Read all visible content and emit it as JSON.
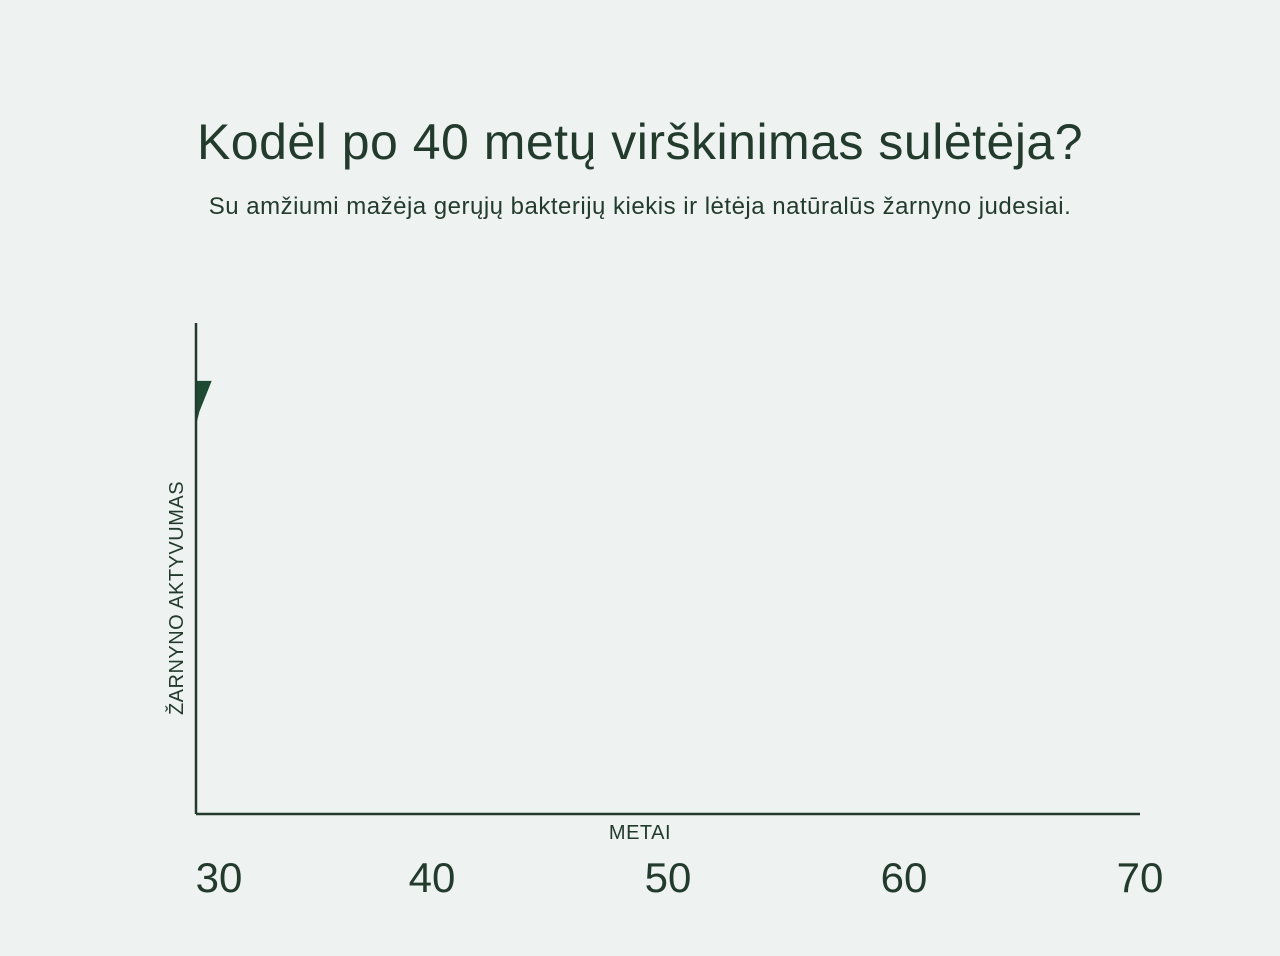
{
  "title": "Kodėl po 40 metų virškinimas sulėtėja?",
  "subtitle": "Su amžiumi mažėja gerųjų bakterijų kiekis ir lėtėja natūralūs žarnyno judesiai.",
  "chart_data": {
    "type": "area",
    "title": "Kodėl po 40 metų virškinimas sulėtėja?",
    "subtitle": "Su amžiumi mažėja gerųjų bakterijų kiekis ir lėtėja natūralūs žarnyno judesiai.",
    "xlabel": "METAI",
    "ylabel": "ŽARNYNO AKTYVUMAS",
    "xlim": [
      30,
      70
    ],
    "ylim": [
      0,
      100
    ],
    "x_ticks": [
      30,
      40,
      50,
      60,
      70
    ],
    "x_tick_labels": [
      "30",
      "40",
      "50",
      "60",
      "70"
    ],
    "grid": false,
    "series": [
      {
        "x": [
          30,
          30.6,
          30.1,
          30
        ],
        "y": [
          88,
          88,
          82,
          80
        ]
      }
    ],
    "colors": {
      "axis": "#233b2d",
      "series": "#1e4a34",
      "background": "#eef2f1"
    }
  }
}
